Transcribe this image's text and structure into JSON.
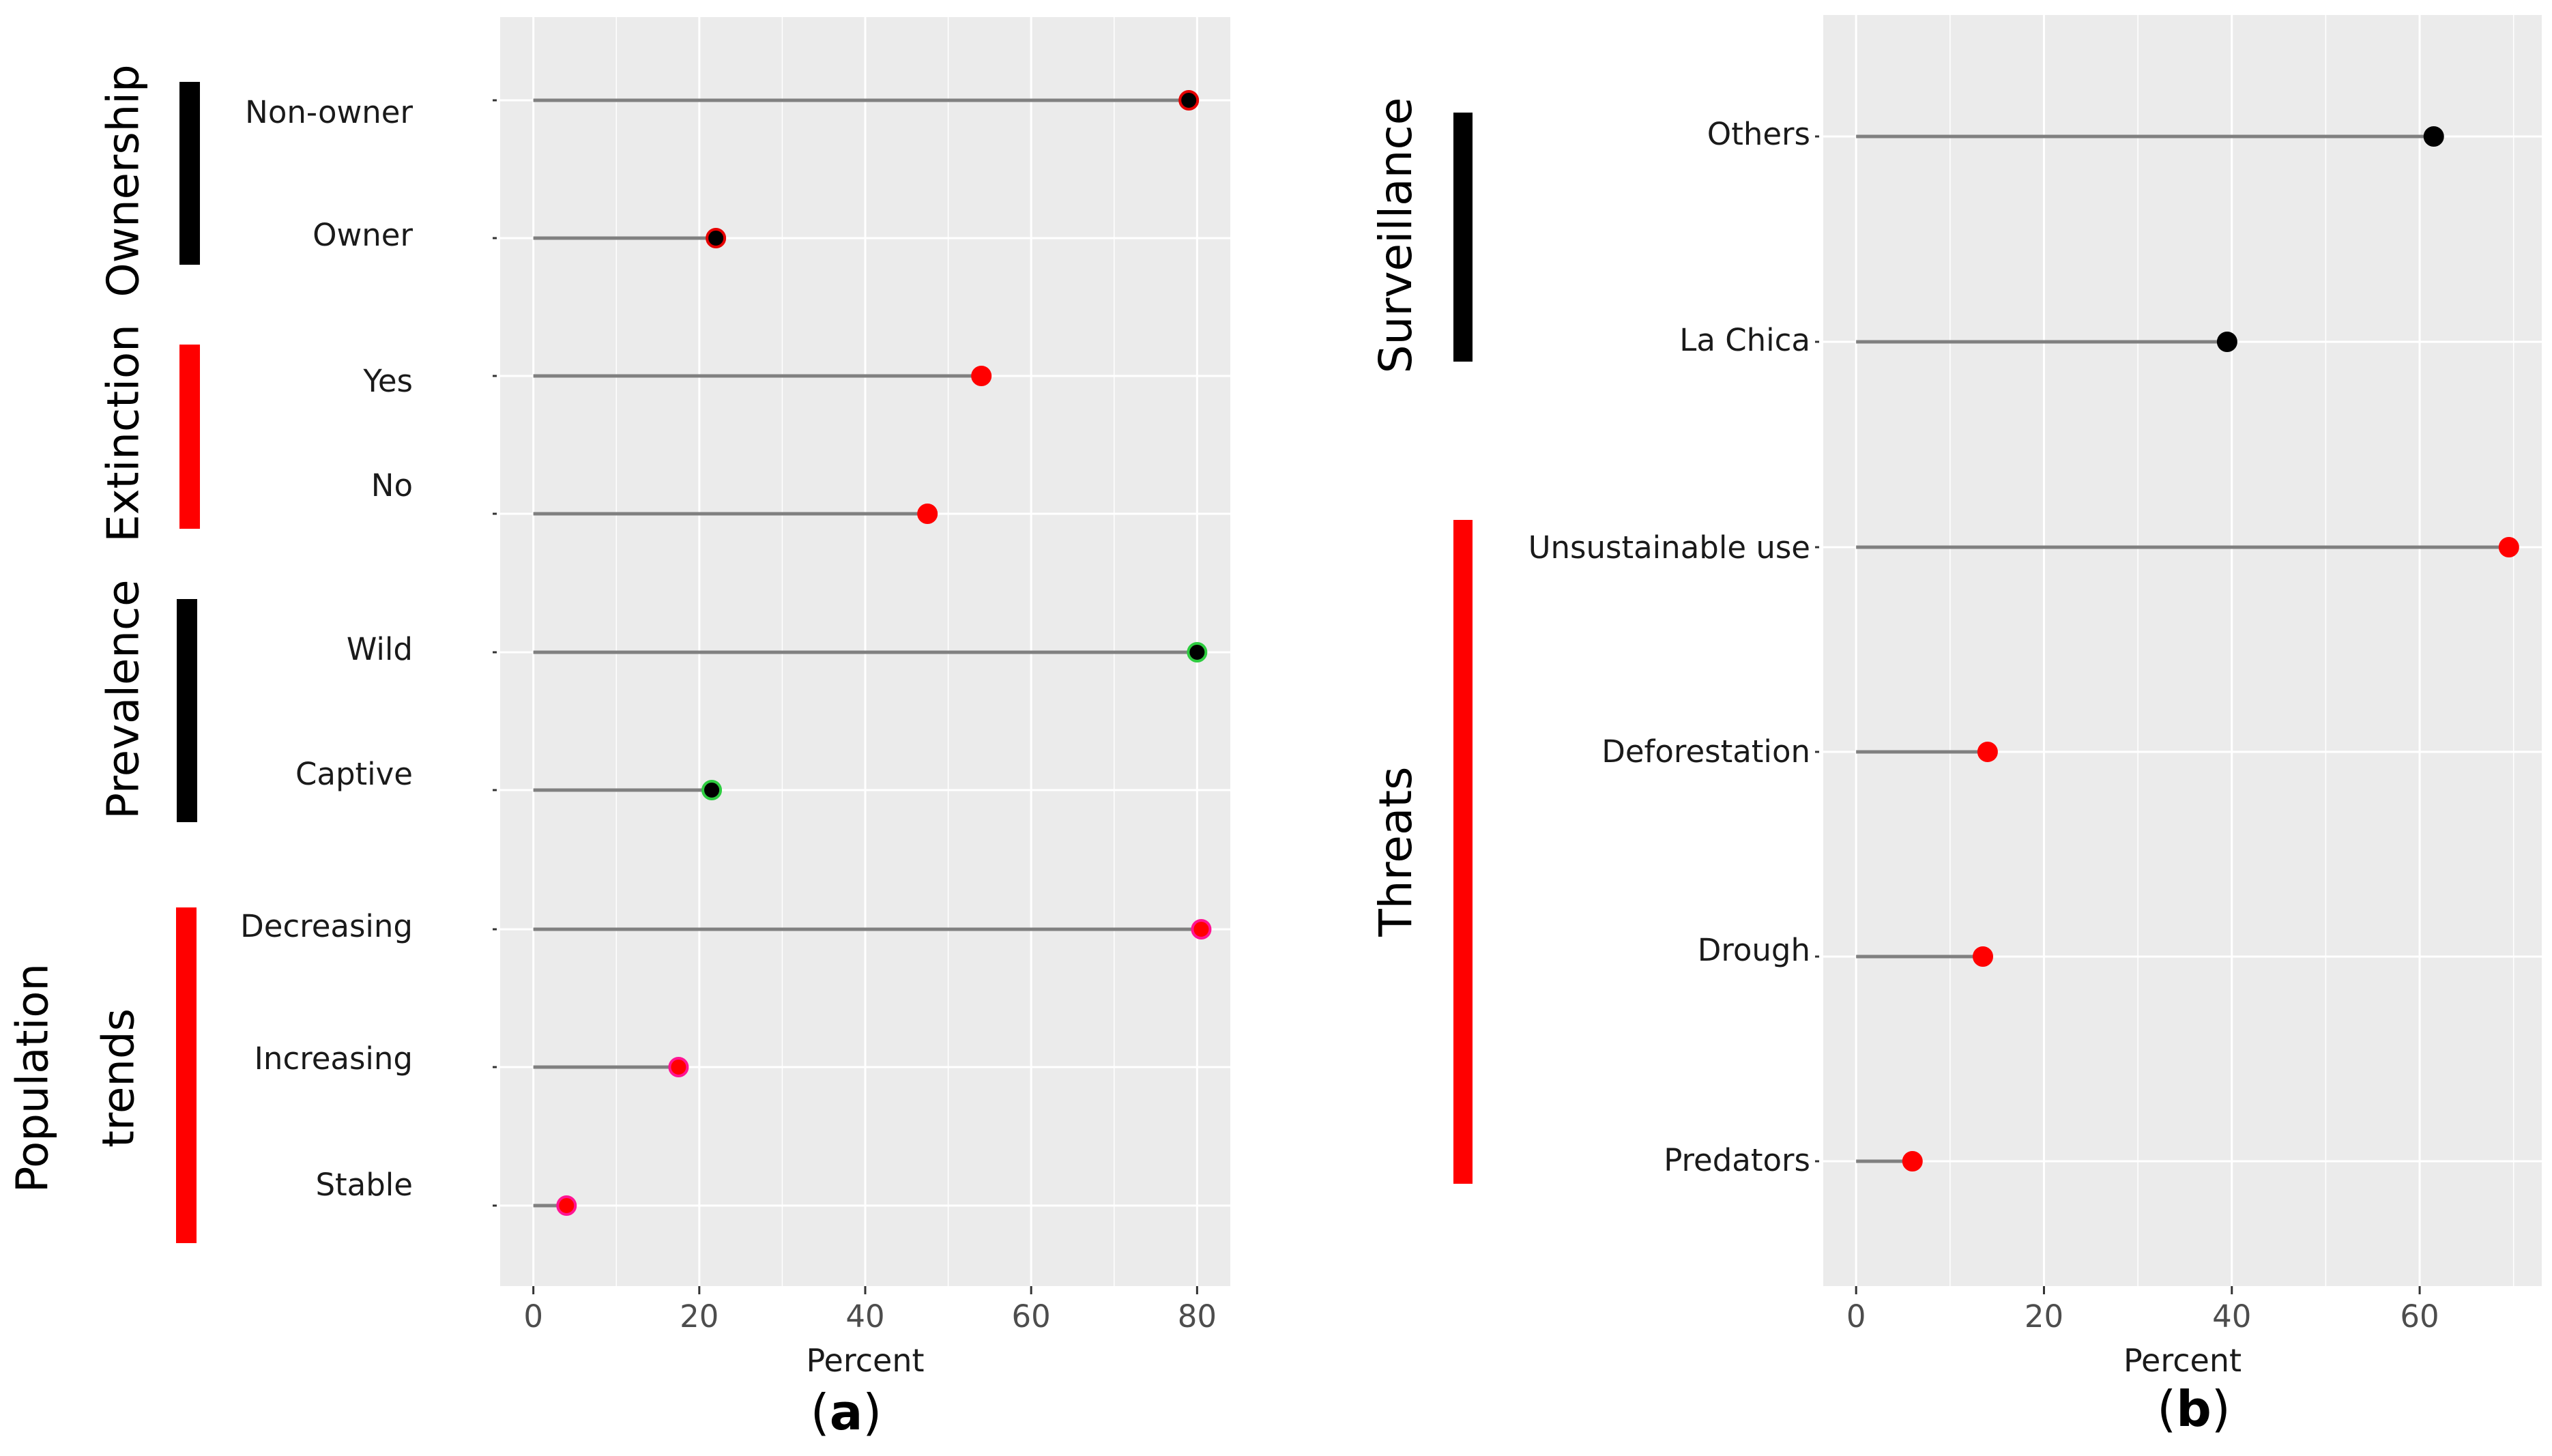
{
  "chart_data": [
    {
      "type": "lollipop",
      "panel_label": "(a)",
      "panel_letter": "a",
      "xlabel": "Percent",
      "xlim": [
        -4,
        84
      ],
      "xticks": [
        "0",
        "20",
        "40",
        "60",
        "80"
      ],
      "xtick_values": [
        0,
        20,
        40,
        60,
        80
      ],
      "groups": [
        {
          "label": "Ownership",
          "label_lines": [
            "Ownership"
          ],
          "bar_color": "#000000"
        },
        {
          "label": "Extinction",
          "label_lines": [
            "Extinction"
          ],
          "bar_color": "#ff0000"
        },
        {
          "label": "Prevalence",
          "label_lines": [
            "Prevalence"
          ],
          "bar_color": "#000000"
        },
        {
          "label": "Population trends",
          "label_lines": [
            "Population",
            "trends"
          ],
          "bar_color": "#ff0000"
        }
      ],
      "rows": [
        {
          "category": "Non-owner",
          "value": 79,
          "group": "Ownership",
          "point_fill": "#000000",
          "point_edge": "#e60000"
        },
        {
          "category": "Owner",
          "value": 22,
          "group": "Ownership",
          "point_fill": "#000000",
          "point_edge": "#e60000"
        },
        {
          "category": "Yes",
          "value": 54,
          "group": "Extinction",
          "point_fill": "#ff0000",
          "point_edge": "#ff0000"
        },
        {
          "category": "No",
          "value": 47.5,
          "group": "Extinction",
          "point_fill": "#ff0000",
          "point_edge": "#ff0000"
        },
        {
          "category": "Wild",
          "value": 80,
          "group": "Prevalence",
          "point_fill": "#000000",
          "point_edge": "#2ecc40"
        },
        {
          "category": "Captive",
          "value": 21.5,
          "group": "Prevalence",
          "point_fill": "#000000",
          "point_edge": "#2ecc40"
        },
        {
          "category": "Decreasing",
          "value": 80.5,
          "group": "Population trends",
          "point_fill": "#ff0000",
          "point_edge": "#ff1493"
        },
        {
          "category": "Increasing",
          "value": 17.5,
          "group": "Population trends",
          "point_fill": "#ff0000",
          "point_edge": "#ff1493"
        },
        {
          "category": "Stable",
          "value": 4,
          "group": "Population trends",
          "point_fill": "#ff0000",
          "point_edge": "#ff1493"
        }
      ]
    },
    {
      "type": "lollipop",
      "panel_label": "(b)",
      "panel_letter": "b",
      "xlabel": "Percent",
      "xlim": [
        -3.5,
        73
      ],
      "xticks": [
        "0",
        "20",
        "40",
        "60"
      ],
      "xtick_values": [
        0,
        20,
        40,
        60
      ],
      "groups": [
        {
          "label": "Surveillance",
          "label_lines": [
            "Surveillance"
          ],
          "bar_color": "#000000"
        },
        {
          "label": "Threats",
          "label_lines": [
            "Threats"
          ],
          "bar_color": "#ff0000"
        }
      ],
      "rows": [
        {
          "category": "Others",
          "value": 61.5,
          "group": "Surveillance",
          "point_fill": "#000000",
          "point_edge": "#000000"
        },
        {
          "category": "La Chica",
          "value": 39.5,
          "group": "Surveillance",
          "point_fill": "#000000",
          "point_edge": "#000000"
        },
        {
          "category": "Unsustainable use",
          "value": 69.5,
          "group": "Threats",
          "point_fill": "#ff0000",
          "point_edge": "#ff0000"
        },
        {
          "category": "Deforestation",
          "value": 14,
          "group": "Threats",
          "point_fill": "#ff0000",
          "point_edge": "#ff0000"
        },
        {
          "category": "Drough",
          "value": 13.5,
          "group": "Threats",
          "point_fill": "#ff0000",
          "point_edge": "#ff0000"
        },
        {
          "category": "Predators",
          "value": 6,
          "group": "Threats",
          "point_fill": "#ff0000",
          "point_edge": "#ff0000"
        }
      ]
    }
  ],
  "colors": {
    "panel_background": "#ebebeb",
    "gridline": "#ffffff",
    "stem": "#808080",
    "text": "#1a1a1a"
  }
}
